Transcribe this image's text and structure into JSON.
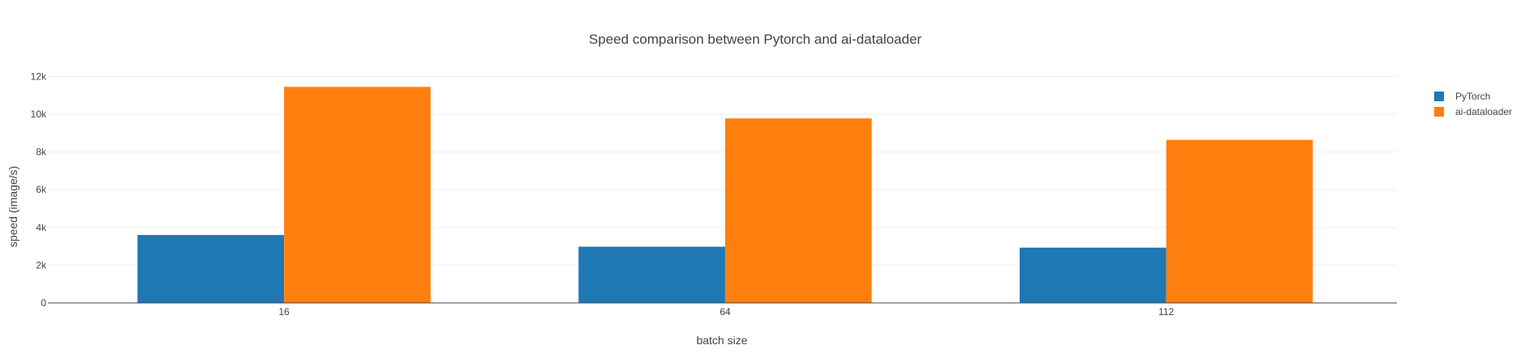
{
  "chart_data": {
    "type": "bar",
    "title": "Speed comparison between Pytorch and ai-dataloader",
    "xlabel": "batch size",
    "ylabel": "speed (image/s)",
    "x_axis_type": "linear",
    "x": [
      16,
      64,
      112
    ],
    "x_tick_labels": [
      "16",
      "64",
      "112"
    ],
    "ylim": [
      0,
      12000
    ],
    "y_ticks": [
      0,
      2000,
      4000,
      6000,
      8000,
      10000,
      12000
    ],
    "y_tick_labels": [
      "0",
      "2k",
      "4k",
      "6k",
      "8k",
      "10k",
      "12k"
    ],
    "grid": true,
    "legend_position": "top-right",
    "series": [
      {
        "name": "PyTorch",
        "color": "#1f77b4",
        "values": [
          3600,
          2980,
          2930
        ]
      },
      {
        "name": "ai-dataloader",
        "color": "#ff7f0e",
        "values": [
          11450,
          9780,
          8640
        ]
      }
    ]
  }
}
